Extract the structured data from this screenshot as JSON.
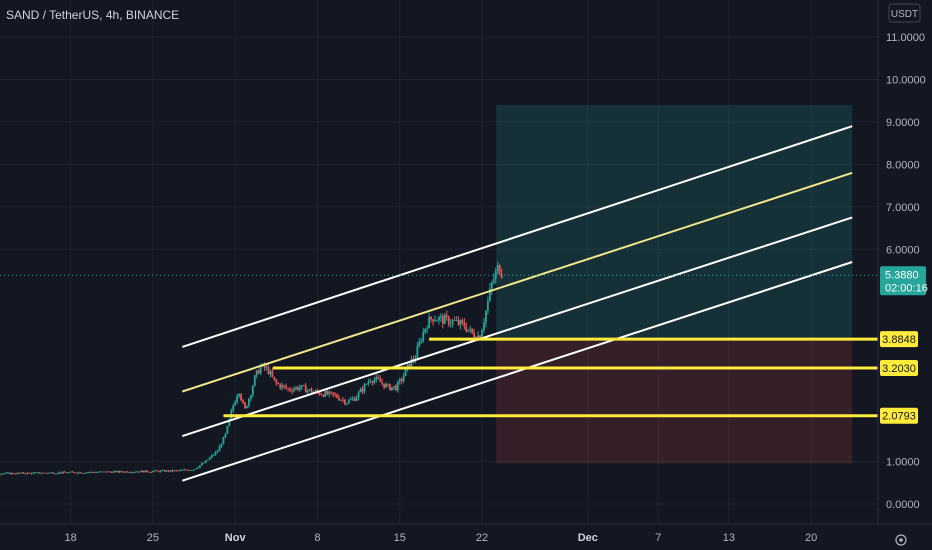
{
  "chart_data": {
    "type": "candlestick",
    "title": "SAND / TetherUS, 4h, BINANCE",
    "currency": "USDT",
    "y_ticks": [
      "11.0000",
      "10.0000",
      "9.0000",
      "8.0000",
      "7.0000",
      "6.0000",
      "1.0000",
      "0.0000"
    ],
    "ylim": [
      -0.3,
      12.0
    ],
    "x_ticks": [
      {
        "day": 18,
        "label": "18",
        "bold": false
      },
      {
        "day": 25,
        "label": "25",
        "bold": false
      },
      {
        "day": 32,
        "label": "Nov",
        "bold": true
      },
      {
        "day": 39,
        "label": "8",
        "bold": false
      },
      {
        "day": 46,
        "label": "15",
        "bold": false
      },
      {
        "day": 53,
        "label": "22",
        "bold": false
      },
      {
        "day": 62,
        "label": "Dec",
        "bold": true
      },
      {
        "day": 68,
        "label": "7",
        "bold": false
      },
      {
        "day": 74,
        "label": "13",
        "bold": false
      },
      {
        "day": 81,
        "label": "20",
        "bold": false
      }
    ],
    "current_price": {
      "value": 5.388,
      "label": "5.3880",
      "countdown": "02:00:16"
    },
    "levels": [
      {
        "price": 3.8848,
        "label": "3.8848",
        "start_day": 48.5
      },
      {
        "price": 3.203,
        "label": "3.2030",
        "start_day": 35.2
      },
      {
        "price": 2.0793,
        "label": "2.0793",
        "start_day": 31.0
      }
    ],
    "channel_lines": [
      {
        "color": "#ffffff",
        "points": [
          [
            27.5,
            3.7
          ],
          [
            84.5,
            8.9
          ]
        ]
      },
      {
        "color": "#f0e68c",
        "points": [
          [
            27.5,
            2.65
          ],
          [
            84.5,
            7.8
          ]
        ]
      },
      {
        "color": "#ffffff",
        "points": [
          [
            27.5,
            1.6
          ],
          [
            84.5,
            6.75
          ]
        ]
      },
      {
        "color": "#ffffff",
        "points": [
          [
            27.5,
            0.55
          ],
          [
            84.5,
            5.7
          ]
        ]
      }
    ],
    "position_box": {
      "start_day": 54.2,
      "end_day": 84.5,
      "entry": 3.8848,
      "target": 9.4,
      "stop": 0.95,
      "profit_color": "rgba(38, 166, 154, 0.18)",
      "loss_color": "rgba(239, 83, 80, 0.16)"
    },
    "price_anchors": [
      [
        13.0,
        0.72
      ],
      [
        20.0,
        0.75
      ],
      [
        27.0,
        0.78
      ],
      [
        28.5,
        0.82
      ],
      [
        29.5,
        1.0
      ],
      [
        30.5,
        1.25
      ],
      [
        31.2,
        1.65
      ],
      [
        31.8,
        2.3
      ],
      [
        32.3,
        2.7
      ],
      [
        32.8,
        2.2
      ],
      [
        33.3,
        2.6
      ],
      [
        33.7,
        3.0
      ],
      [
        34.2,
        3.25
      ],
      [
        34.8,
        3.15
      ],
      [
        35.4,
        2.85
      ],
      [
        36.5,
        2.7
      ],
      [
        37.5,
        2.75
      ],
      [
        38.5,
        2.65
      ],
      [
        39.5,
        2.6
      ],
      [
        40.5,
        2.55
      ],
      [
        41.5,
        2.4
      ],
      [
        42.2,
        2.5
      ],
      [
        42.8,
        2.7
      ],
      [
        43.5,
        2.95
      ],
      [
        44.2,
        2.9
      ],
      [
        45.0,
        2.75
      ],
      [
        45.7,
        2.75
      ],
      [
        46.2,
        2.95
      ],
      [
        46.8,
        3.3
      ],
      [
        47.3,
        3.45
      ],
      [
        47.8,
        3.9
      ],
      [
        48.3,
        4.25
      ],
      [
        48.8,
        4.4
      ],
      [
        49.5,
        4.35
      ],
      [
        50.5,
        4.3
      ],
      [
        51.5,
        4.2
      ],
      [
        52.2,
        4.0
      ],
      [
        52.8,
        3.95
      ],
      [
        53.3,
        4.5
      ],
      [
        53.8,
        5.15
      ],
      [
        54.4,
        5.6
      ],
      [
        54.8,
        5.388
      ]
    ],
    "up_color": "#26a69a",
    "down_color": "#ef5350"
  }
}
